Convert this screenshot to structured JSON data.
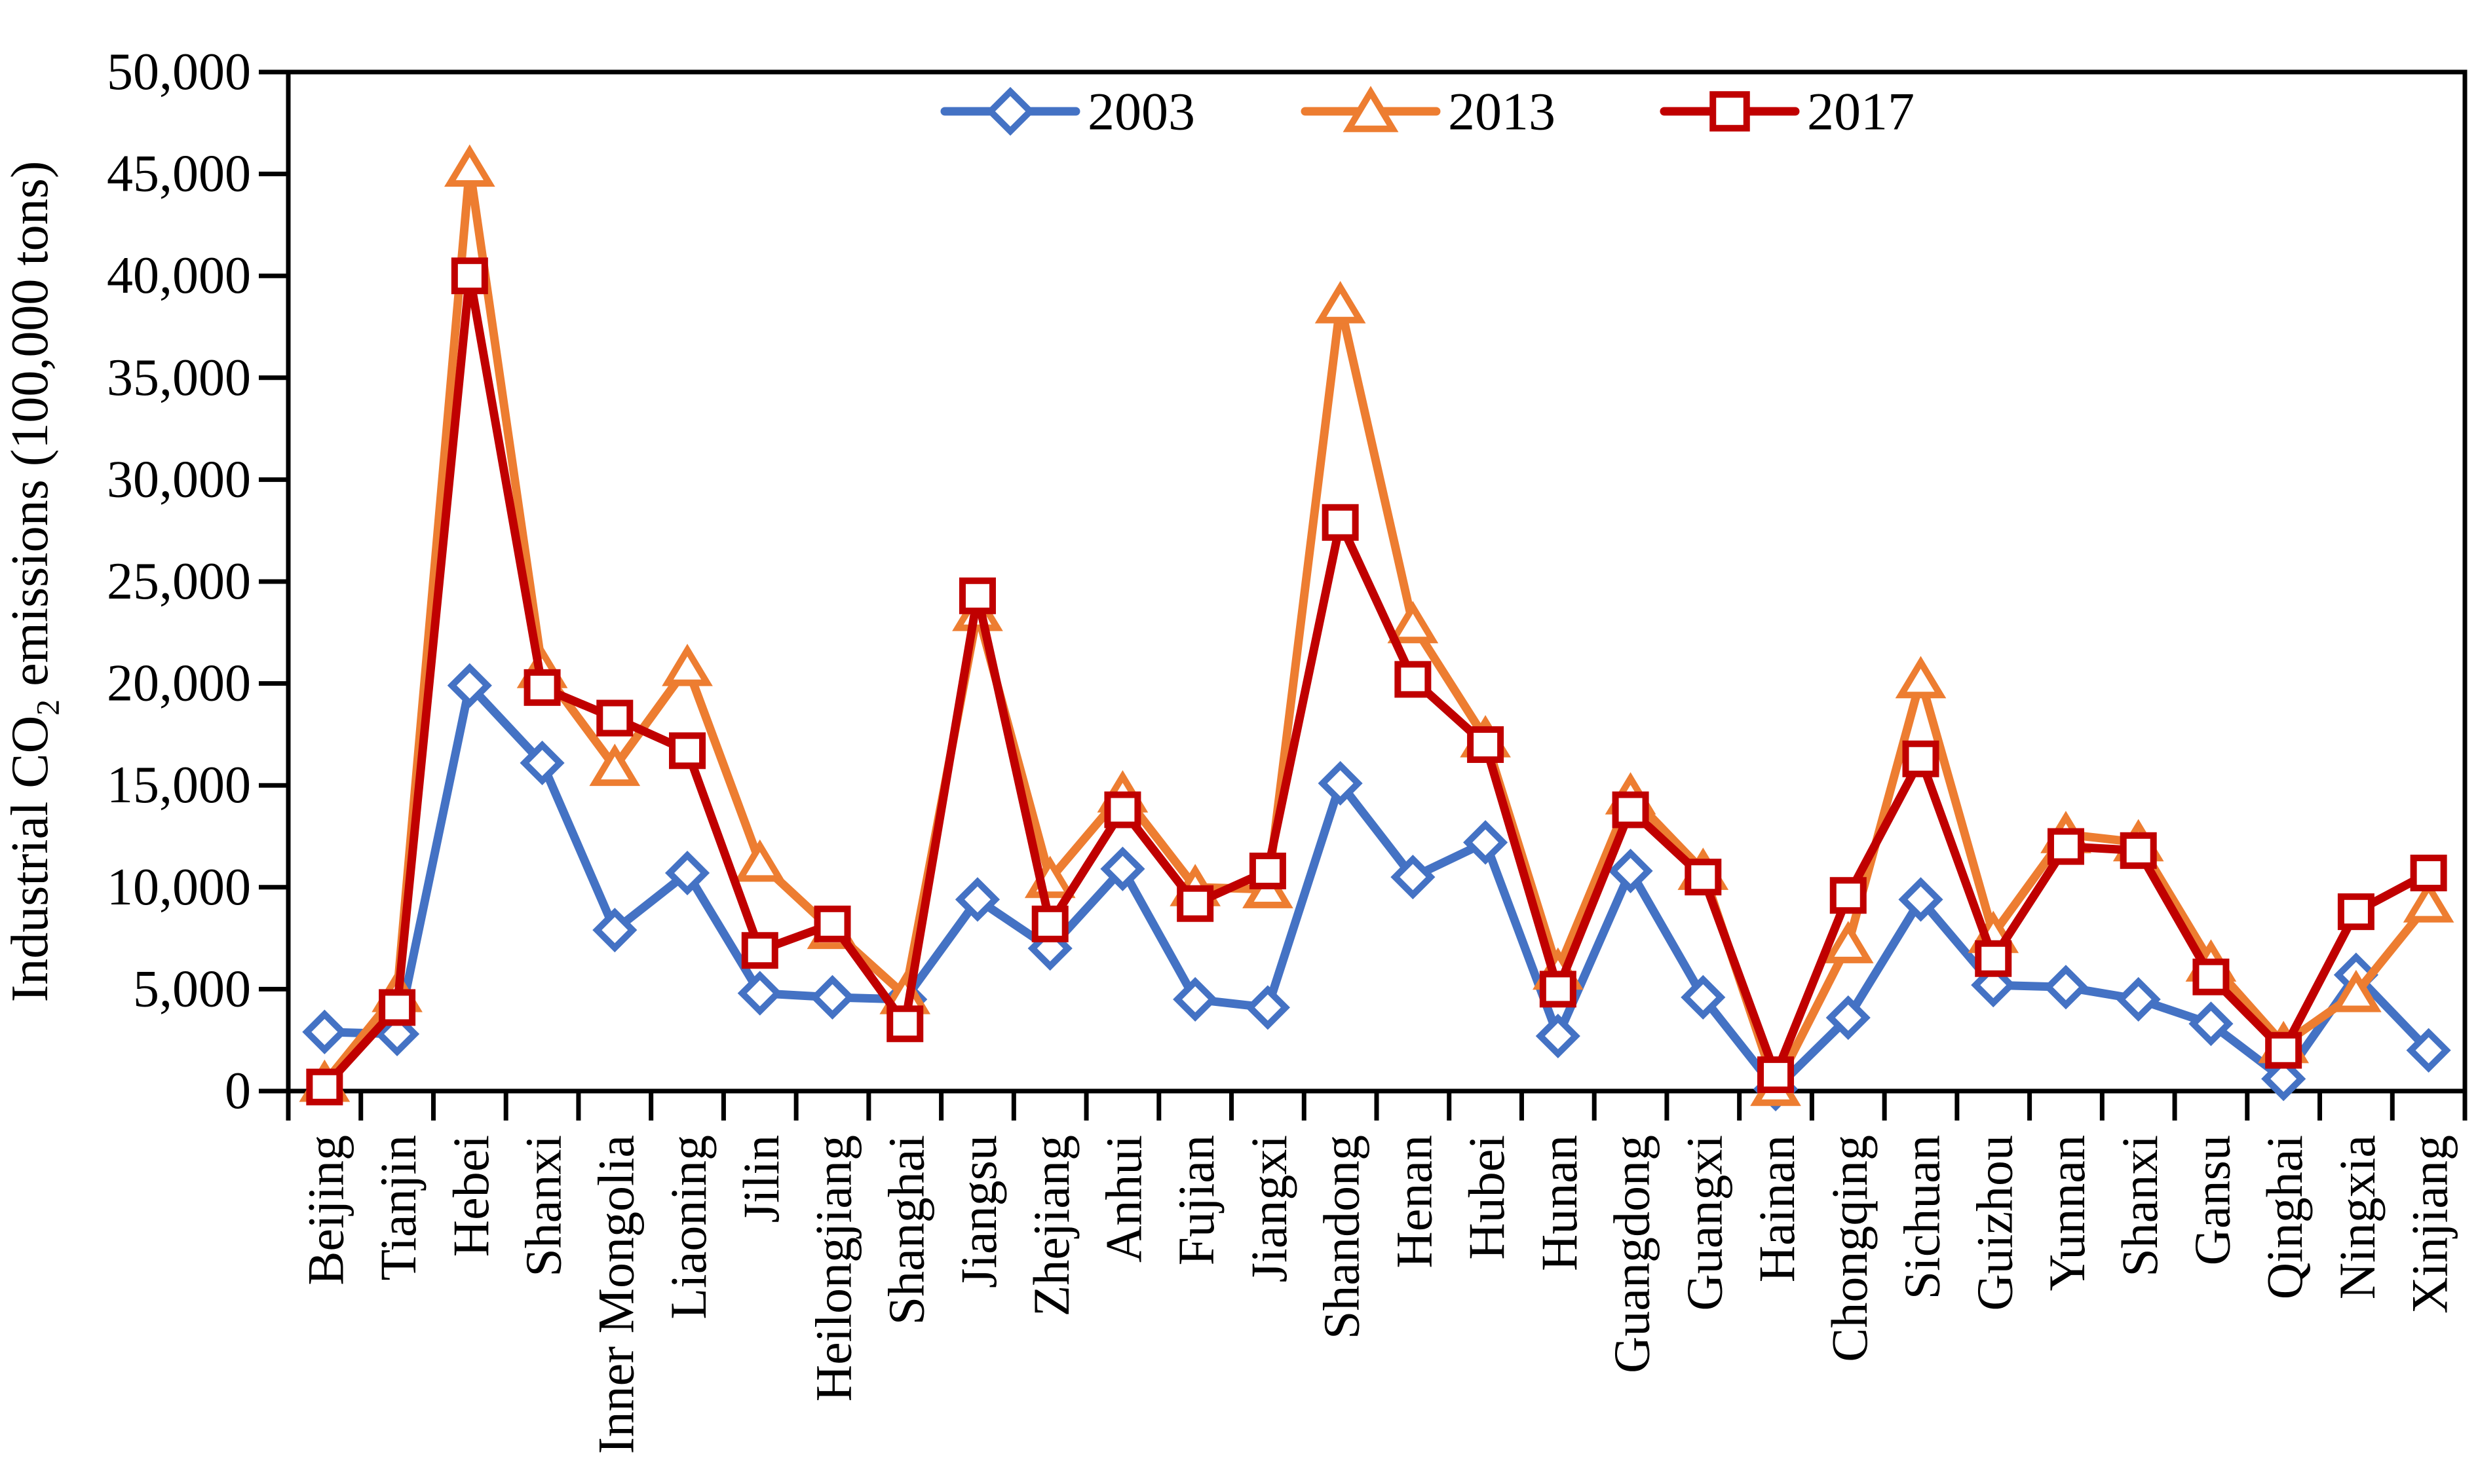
{
  "figure": {
    "description": "Line chart of industrial CO2 emissions by Chinese province for 2003, 2013 and 2017"
  },
  "chart_data": {
    "type": "line",
    "title": "",
    "xlabel": "",
    "ylabel_text": "Industrial CO2 emissions (100,000 tons)",
    "ylabel_parts": [
      "Industrial CO",
      "2",
      " emissions (100,000 tons)"
    ],
    "ylim": [
      0,
      50000
    ],
    "ytick_step": 5000,
    "grid": false,
    "legend_position": "top-center",
    "background_color": "#FFFFFF",
    "axis_color": "#000000",
    "categories": [
      "Beijing",
      "Tianjin",
      "Hebei",
      "Shanxi",
      "Inner Mongolia",
      "Liaoning",
      "Jilin",
      "Heilongjiang",
      "Shanghai",
      "Jiangsu",
      "Zhejiang",
      "Anhui",
      "Fujian",
      "Jiangxi",
      "Shandong",
      "Henan",
      "Hubei",
      "Hunan",
      "Guangdong",
      "Guangxi",
      "Hainan",
      "Chongqing",
      "Sichuan",
      "Guizhou",
      "Yunnan",
      "Shanxi",
      "Gansu",
      "Qinghai",
      "Ningxia",
      "Xinjiang"
    ],
    "series": [
      {
        "name": "2003",
        "color": "#4472C4",
        "marker": "diamond",
        "values": [
          2900,
          2800,
          19900,
          16100,
          7900,
          10700,
          4800,
          4600,
          4500,
          9400,
          7000,
          10900,
          4500,
          4100,
          15100,
          10500,
          12200,
          2700,
          10800,
          4600,
          100,
          3600,
          9400,
          5200,
          5100,
          4500,
          3300,
          600,
          5700,
          2000
        ]
      },
      {
        "name": "2013",
        "color": "#ED7D31",
        "marker": "triangle",
        "values": [
          400,
          4800,
          45300,
          20700,
          15900,
          20800,
          11200,
          7900,
          4700,
          23500,
          10400,
          14600,
          10000,
          9900,
          38600,
          22900,
          17300,
          5900,
          14500,
          10800,
          200,
          7200,
          20200,
          7700,
          12600,
          12200,
          6300,
          2300,
          4800,
          9200
        ]
      },
      {
        "name": "2017",
        "color": "#C00000",
        "marker": "square",
        "values": [
          200,
          4100,
          40000,
          19800,
          18300,
          16700,
          6900,
          8200,
          3300,
          24300,
          8200,
          13800,
          9200,
          10800,
          27900,
          20200,
          17000,
          5000,
          13800,
          10500,
          800,
          9600,
          16300,
          6500,
          12000,
          11800,
          5600,
          2000,
          8800,
          10700
        ]
      }
    ]
  }
}
